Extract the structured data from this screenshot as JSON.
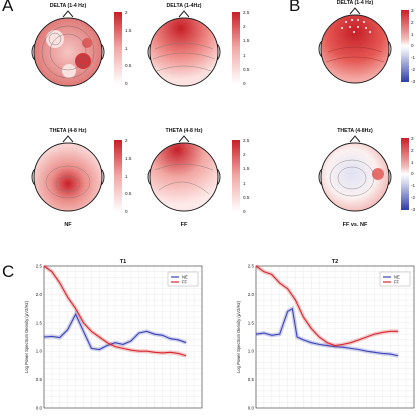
{
  "panels": {
    "a": "A",
    "b": "B",
    "c": "C"
  },
  "topomaps": [
    {
      "title": "DELTA (1-4 Hz)",
      "ticks": [
        "2",
        "1.5",
        "1",
        "0.5",
        "0"
      ]
    },
    {
      "title": "DELTA (1-4Hz)",
      "ticks": [
        "2.5",
        "2",
        "1.5",
        "1",
        "0.5",
        "0"
      ]
    },
    {
      "title": "THETA (4-8 Hz)",
      "ticks": [
        "2",
        "1.5",
        "1",
        "0.5",
        "0"
      ]
    },
    {
      "title": "THETA (4-8 Hz)",
      "ticks": [
        "2.5",
        "2",
        "1.5",
        "1",
        "0.5",
        "0"
      ]
    },
    {
      "title": "DELTA (1-4 Hz)",
      "ticks": [
        "3",
        "2",
        "1",
        "0",
        "-1",
        "-2",
        "-3"
      ]
    },
    {
      "title": "THETA (4-8Hz)",
      "ticks": [
        "3",
        "2",
        "1",
        "0",
        "-1",
        "-2",
        "-3"
      ]
    }
  ],
  "group_labels": {
    "nf": "NF",
    "ff": "FF",
    "ff_vs_nf": "FF vs. NF"
  },
  "colors": {
    "nf": "#3b44b8",
    "ff": "#d8262c",
    "red": "#d7262b",
    "blue": "#3b46b0"
  },
  "chart_data": [
    {
      "type": "line",
      "title": "T1",
      "ylabel": "Log Power Spectrum Density (μV2/Hz)",
      "ylim": [
        0.0,
        2.5
      ],
      "yticks": [
        "0.0",
        "0.5",
        "1.0",
        "1.5",
        "2.0",
        "2.5"
      ],
      "xlim": [
        0,
        10
      ],
      "grid": true,
      "legend": "top-right",
      "series": [
        {
          "name": "NE",
          "color": "#3b44b8",
          "x": [
            0,
            0.5,
            1,
            1.5,
            2,
            2.5,
            3,
            3.5,
            4,
            4.5,
            5,
            5.5,
            6,
            6.5,
            7,
            7.5,
            8,
            8.5,
            9
          ],
          "y": [
            1.25,
            1.26,
            1.24,
            1.38,
            1.65,
            1.35,
            1.05,
            1.03,
            1.1,
            1.15,
            1.12,
            1.18,
            1.32,
            1.35,
            1.3,
            1.28,
            1.22,
            1.2,
            1.15
          ]
        },
        {
          "name": "FF",
          "color": "#d8262c",
          "x": [
            0,
            0.5,
            1,
            1.5,
            2,
            2.5,
            3,
            3.5,
            4,
            4.5,
            5,
            5.5,
            6,
            6.5,
            7,
            7.5,
            8,
            8.5,
            9
          ],
          "y": [
            2.5,
            2.4,
            2.2,
            1.95,
            1.75,
            1.5,
            1.35,
            1.25,
            1.15,
            1.08,
            1.05,
            1.02,
            1.0,
            1.0,
            0.98,
            0.97,
            0.98,
            0.96,
            0.92
          ]
        }
      ]
    },
    {
      "type": "line",
      "title": "T2",
      "ylabel": "Log Power Spectrum Density (μV2/Hz)",
      "ylim": [
        0.0,
        2.5
      ],
      "yticks": [
        "0.0",
        "0.5",
        "1.0",
        "1.5",
        "2.0",
        "2.5"
      ],
      "xlim": [
        0,
        10
      ],
      "grid": true,
      "legend": "top-right",
      "series": [
        {
          "name": "NE",
          "color": "#3b44b8",
          "x": [
            0,
            0.5,
            1,
            1.5,
            2,
            2.3,
            2.6,
            3,
            3.5,
            4,
            4.5,
            5,
            5.5,
            6,
            6.5,
            7,
            7.5,
            8,
            8.5,
            9
          ],
          "y": [
            1.3,
            1.32,
            1.28,
            1.3,
            1.7,
            1.75,
            1.25,
            1.2,
            1.15,
            1.12,
            1.1,
            1.08,
            1.07,
            1.05,
            1.03,
            1.0,
            0.98,
            0.96,
            0.95,
            0.92
          ]
        },
        {
          "name": "FF",
          "color": "#d8262c",
          "x": [
            0,
            0.5,
            1,
            1.5,
            2,
            2.5,
            3,
            3.5,
            4,
            4.5,
            5,
            5.5,
            6,
            6.5,
            7,
            7.5,
            8,
            8.5,
            9
          ],
          "y": [
            2.5,
            2.4,
            2.35,
            2.2,
            2.1,
            1.9,
            1.6,
            1.4,
            1.25,
            1.15,
            1.1,
            1.12,
            1.15,
            1.2,
            1.25,
            1.3,
            1.33,
            1.35,
            1.35
          ]
        }
      ]
    }
  ]
}
